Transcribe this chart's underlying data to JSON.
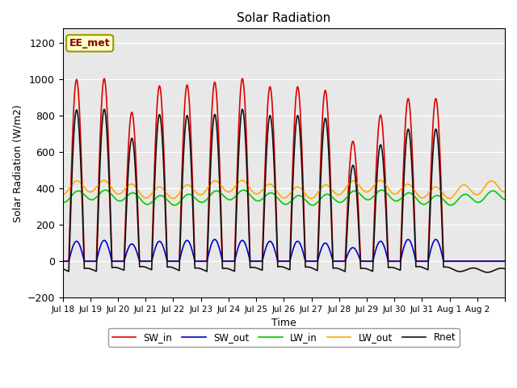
{
  "title": "Solar Radiation",
  "xlabel": "Time",
  "ylabel": "Solar Radiation (W/m2)",
  "ylim": [
    -200,
    1280
  ],
  "yticks": [
    -200,
    0,
    200,
    400,
    600,
    800,
    1000,
    1200
  ],
  "annotation": "EE_met",
  "legend_entries": [
    "SW_in",
    "SW_out",
    "LW_in",
    "LW_out",
    "Rnet"
  ],
  "line_colors": [
    "#dd0000",
    "#0000cc",
    "#00cc00",
    "#ffaa00",
    "#111111"
  ],
  "line_widths": [
    1.2,
    1.2,
    1.2,
    1.2,
    1.2
  ],
  "bg_color": "#e8e8e8",
  "fig_bg": "#ffffff",
  "n_days": 16,
  "dt_hours": 0.25,
  "SW_in_peaks": [
    1000,
    1005,
    820,
    965,
    970,
    985,
    1005,
    960,
    960,
    940,
    660,
    805,
    895,
    895,
    0,
    0
  ],
  "SW_out_peaks": [
    110,
    115,
    95,
    110,
    115,
    120,
    115,
    110,
    110,
    100,
    75,
    110,
    120,
    120,
    0,
    0
  ],
  "LW_in_base": 350,
  "LW_in_amp": 45,
  "LW_out_base": 395,
  "LW_out_amp": 55,
  "Rnet_night": -55,
  "xticklabels": [
    "Jul 18",
    "Jul 19",
    "Jul 20",
    "Jul 21",
    "Jul 22",
    "Jul 23",
    "Jul 24",
    "Jul 25",
    "Jul 26",
    "Jul 27",
    "Jul 28",
    "Jul 29",
    "Jul 30",
    "Jul 31",
    "Aug 1",
    "Aug 2"
  ]
}
